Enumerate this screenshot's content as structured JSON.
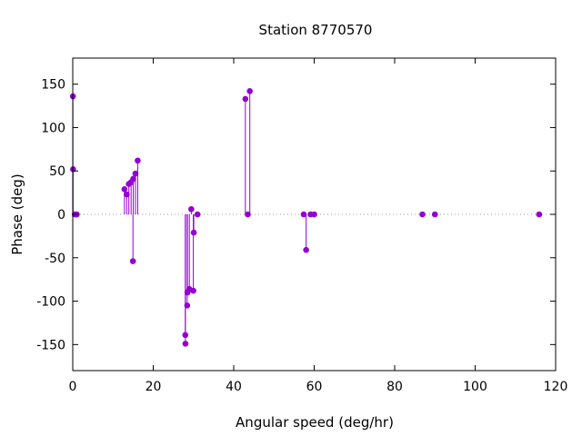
{
  "chart_data": {
    "type": "scatter",
    "style": "impulses",
    "title": "Station 8770570",
    "xlabel": "Angular speed (deg/hr)",
    "ylabel": "Phase (deg)",
    "xlim": [
      0,
      120
    ],
    "ylim": [
      -180,
      180
    ],
    "xticks": [
      0,
      20,
      40,
      60,
      80,
      100,
      120
    ],
    "yticks": [
      -150,
      -100,
      -50,
      0,
      50,
      100,
      150
    ],
    "zero_line": "dotted",
    "grid": false,
    "color": "#9400d3",
    "series": [
      {
        "points": [
          [
            0.04,
            136
          ],
          [
            0.08,
            52
          ],
          [
            0.5,
            0
          ],
          [
            0.8,
            0
          ],
          [
            1.0,
            0
          ],
          [
            12.85,
            29
          ],
          [
            13.4,
            23
          ],
          [
            13.94,
            35
          ],
          [
            14.5,
            37
          ],
          [
            14.96,
            -54
          ],
          [
            15.04,
            41
          ],
          [
            15.59,
            47
          ],
          [
            16.14,
            62
          ],
          [
            27.97,
            -139
          ],
          [
            28.0,
            -149
          ],
          [
            28.44,
            -105
          ],
          [
            28.51,
            -90
          ],
          [
            28.98,
            -86
          ],
          [
            29.46,
            6
          ],
          [
            29.96,
            -88
          ],
          [
            30.08,
            -21
          ],
          [
            31.0,
            0
          ],
          [
            42.9,
            133
          ],
          [
            43.5,
            0
          ],
          [
            44.0,
            142
          ],
          [
            57.4,
            0
          ],
          [
            58.0,
            -41
          ],
          [
            59.1,
            0
          ],
          [
            60.0,
            0
          ],
          [
            86.9,
            0
          ],
          [
            90.0,
            0
          ],
          [
            115.9,
            0
          ]
        ]
      }
    ]
  }
}
